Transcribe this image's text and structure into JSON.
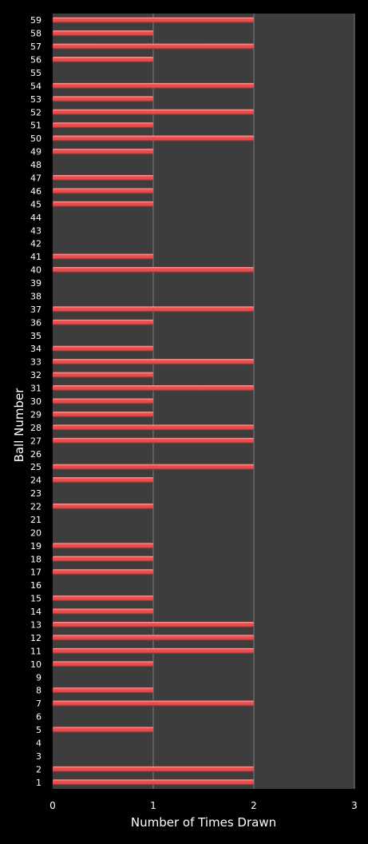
{
  "chart_data": {
    "type": "bar",
    "orientation": "horizontal",
    "title": "",
    "xlabel": "Number of Times Drawn",
    "ylabel": "Ball Number",
    "xlim": [
      0,
      3
    ],
    "xticks": [
      "0",
      "1",
      "2",
      "3"
    ],
    "grid": "vertical",
    "legend": "none",
    "colors": {
      "background": "#000000",
      "plot_area": "#3d3d3d",
      "gridline": "#7f7f7f",
      "bar": "#e84c4c",
      "bar_highlight": "#f6a3a3",
      "bar_shadow": "#9c2020",
      "text": "#ffffff"
    },
    "categories": [
      "1",
      "2",
      "3",
      "4",
      "5",
      "6",
      "7",
      "8",
      "9",
      "10",
      "11",
      "12",
      "13",
      "14",
      "15",
      "16",
      "17",
      "18",
      "19",
      "20",
      "21",
      "22",
      "23",
      "24",
      "25",
      "26",
      "27",
      "28",
      "29",
      "30",
      "31",
      "32",
      "33",
      "34",
      "35",
      "36",
      "37",
      "38",
      "39",
      "40",
      "41",
      "42",
      "43",
      "44",
      "45",
      "46",
      "47",
      "48",
      "49",
      "50",
      "51",
      "52",
      "53",
      "54",
      "55",
      "56",
      "57",
      "58",
      "59"
    ],
    "values": [
      2,
      2,
      0,
      0,
      1,
      0,
      2,
      1,
      0,
      1,
      2,
      2,
      2,
      1,
      1,
      0,
      1,
      1,
      1,
      0,
      0,
      1,
      0,
      1,
      2,
      0,
      2,
      2,
      1,
      1,
      2,
      1,
      2,
      1,
      0,
      1,
      2,
      0,
      0,
      2,
      1,
      0,
      0,
      0,
      1,
      1,
      1,
      0,
      1,
      2,
      1,
      2,
      1,
      2,
      0,
      1,
      2,
      1,
      2
    ]
  }
}
